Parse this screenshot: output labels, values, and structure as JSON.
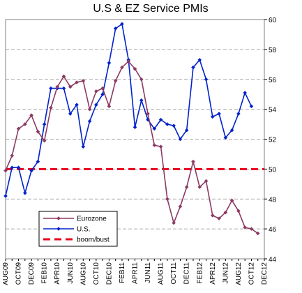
{
  "chart_data": {
    "type": "line",
    "title": "U.S & EZ Service PMIs",
    "xlabel": "",
    "ylabel": "",
    "ylim": [
      44,
      60
    ],
    "y_ticks": [
      44,
      46,
      48,
      50,
      52,
      54,
      56,
      58,
      60
    ],
    "y_axis_side": "right",
    "grid": true,
    "legend_position": "bottom-left",
    "x_tick_labels": [
      "AUG09",
      "OCT09",
      "DEC09",
      "FEB10",
      "APR10",
      "JUN10",
      "AUG10",
      "OCT10",
      "DEC10",
      "FEB11",
      "APR11",
      "JUN11",
      "AUG11",
      "OCT11",
      "DEC11",
      "FEB12",
      "APR12",
      "JUN12",
      "AUG12",
      "OCT12",
      "DEC12"
    ],
    "months": [
      "AUG09",
      "SEP09",
      "OCT09",
      "NOV09",
      "DEC09",
      "JAN10",
      "FEB10",
      "MAR10",
      "APR10",
      "MAY10",
      "JUN10",
      "JUL10",
      "AUG10",
      "SEP10",
      "OCT10",
      "NOV10",
      "DEC10",
      "JAN11",
      "FEB11",
      "MAR11",
      "APR11",
      "MAY11",
      "JUN11",
      "JUL11",
      "AUG11",
      "SEP11",
      "OCT11",
      "NOV11",
      "DEC11",
      "JAN12",
      "FEB12",
      "MAR12",
      "APR12",
      "MAY12",
      "JUN12",
      "JUL12",
      "AUG12",
      "SEP12",
      "OCT12",
      "NOV12",
      "DEC12"
    ],
    "series": [
      {
        "name": "Eurozone",
        "color": "#8B3A62",
        "marker": "diamond",
        "values": [
          49.9,
          50.9,
          52.7,
          53.0,
          53.6,
          52.5,
          51.9,
          54.1,
          55.5,
          56.2,
          55.5,
          55.8,
          55.9,
          54.0,
          55.2,
          55.4,
          54.2,
          55.9,
          56.8,
          57.2,
          56.7,
          56.0,
          53.7,
          51.6,
          51.5,
          48.0,
          46.4,
          47.5,
          48.8,
          50.5,
          48.8,
          49.2,
          46.9,
          46.7,
          47.1,
          47.9,
          47.2,
          46.1,
          46.0,
          45.7,
          null
        ]
      },
      {
        "name": "U.S.",
        "color": "#0022CC",
        "marker": "diamond",
        "values": [
          48.2,
          50.1,
          50.1,
          48.4,
          49.9,
          50.5,
          53.0,
          55.4,
          55.4,
          55.4,
          53.7,
          54.3,
          51.5,
          53.2,
          54.3,
          55.0,
          57.1,
          59.4,
          59.7,
          57.3,
          52.8,
          54.6,
          53.3,
          52.7,
          53.3,
          53.0,
          52.9,
          52.0,
          52.6,
          56.8,
          57.3,
          56.0,
          53.5,
          53.7,
          52.1,
          52.6,
          53.7,
          55.1,
          54.2,
          null,
          null
        ]
      },
      {
        "name": "boom/bust",
        "color": "#E8001C",
        "style": "dashed",
        "values": [
          50,
          50,
          50,
          50,
          50,
          50,
          50,
          50,
          50,
          50,
          50,
          50,
          50,
          50,
          50,
          50,
          50,
          50,
          50,
          50,
          50,
          50,
          50,
          50,
          50,
          50,
          50,
          50,
          50,
          50,
          50,
          50,
          50,
          50,
          50,
          50,
          50,
          50,
          50,
          50,
          50
        ]
      }
    ]
  }
}
